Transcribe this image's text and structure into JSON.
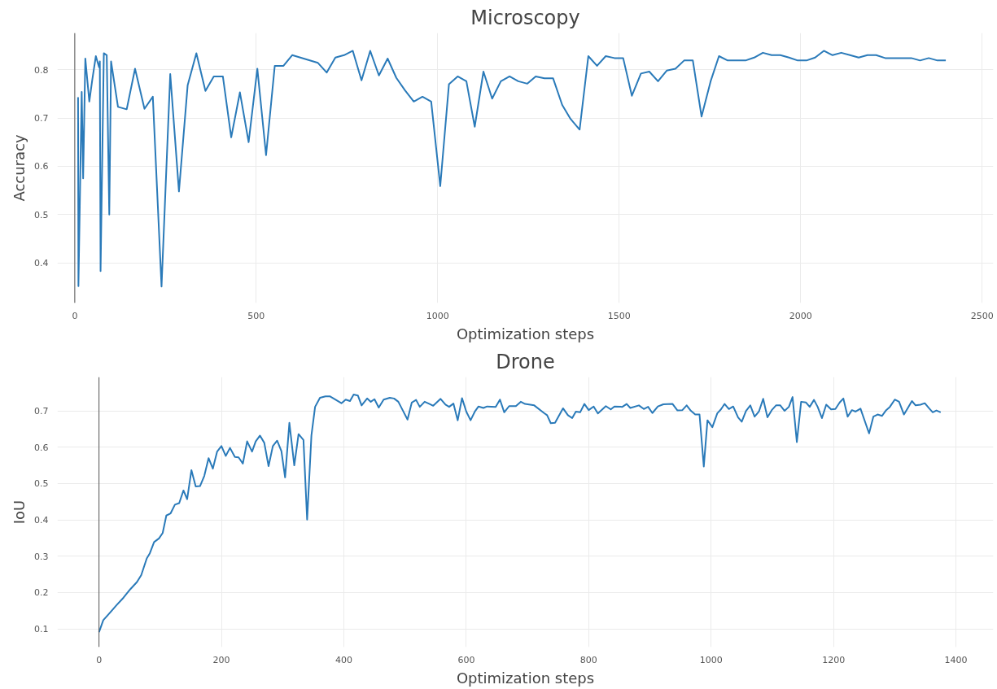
{
  "chart_data": [
    {
      "type": "line",
      "title": "Microscopy",
      "xlabel": "Optimization steps",
      "ylabel": "Accuracy",
      "xlim": [
        -48,
        2531
      ],
      "ylim": [
        0.317,
        0.876
      ],
      "xticks": [
        0,
        500,
        1000,
        1500,
        2000,
        2500
      ],
      "yticks": [
        0.4,
        0.5,
        0.6,
        0.7,
        0.8
      ],
      "grid": true,
      "ref_lines": [
        {
          "axis": "x",
          "value": 0,
          "color": "#555555"
        }
      ],
      "series": [
        {
          "color": "#2a7ab9",
          "x": [
            9,
            10,
            19,
            23,
            29,
            40,
            48,
            58,
            67,
            69,
            71,
            80,
            88,
            95,
            100,
            119,
            143,
            166,
            192,
            215,
            239,
            263,
            287,
            311,
            335,
            360,
            383,
            408,
            431,
            455,
            479,
            503,
            527,
            551,
            575,
            599,
            670,
            694,
            718,
            742,
            766,
            790,
            814,
            838,
            862,
            886,
            910,
            934,
            958,
            982,
            1007,
            1031,
            1055,
            1079,
            1102,
            1126,
            1150,
            1174,
            1198,
            1222,
            1247,
            1270,
            1294,
            1318,
            1343,
            1366,
            1391,
            1415,
            1439,
            1463,
            1487,
            1511,
            1535,
            1560,
            1583,
            1607,
            1631,
            1655,
            1679,
            1703,
            1727,
            1752,
            1775,
            1799,
            1848,
            1872,
            1896,
            1920,
            1944,
            1968,
            1992,
            2016,
            2040,
            2064,
            2088,
            2112,
            2136,
            2160,
            2184,
            2208,
            2233,
            2305,
            2329,
            2353,
            2377,
            2400
          ],
          "values": [
            0.743,
            0.352,
            0.754,
            0.575,
            0.823,
            0.734,
            0.778,
            0.828,
            0.805,
            0.817,
            0.383,
            0.834,
            0.83,
            0.5,
            0.817,
            0.723,
            0.718,
            0.802,
            0.719,
            0.744,
            0.351,
            0.791,
            0.548,
            0.768,
            0.834,
            0.756,
            0.786,
            0.786,
            0.66,
            0.753,
            0.65,
            0.802,
            0.623,
            0.808,
            0.808,
            0.83,
            0.814,
            0.794,
            0.825,
            0.83,
            0.839,
            0.778,
            0.839,
            0.788,
            0.823,
            0.783,
            0.757,
            0.734,
            0.744,
            0.734,
            0.559,
            0.77,
            0.786,
            0.776,
            0.682,
            0.796,
            0.74,
            0.776,
            0.786,
            0.776,
            0.771,
            0.786,
            0.782,
            0.782,
            0.727,
            0.698,
            0.676,
            0.828,
            0.808,
            0.828,
            0.824,
            0.824,
            0.746,
            0.792,
            0.796,
            0.776,
            0.798,
            0.802,
            0.819,
            0.819,
            0.703,
            0.776,
            0.828,
            0.819,
            0.819,
            0.825,
            0.835,
            0.83,
            0.83,
            0.825,
            0.819,
            0.819,
            0.825,
            0.839,
            0.83,
            0.835,
            0.83,
            0.825,
            0.83,
            0.83,
            0.824,
            0.824,
            0.819,
            0.824,
            0.819,
            0.819
          ]
        }
      ]
    },
    {
      "type": "line",
      "title": "Drone",
      "xlabel": "Optimization steps",
      "ylabel": "IoU",
      "xlim": [
        -68,
        1461
      ],
      "ylim": [
        0.05,
        0.793
      ],
      "xticks": [
        0,
        200,
        400,
        600,
        800,
        1000,
        1200,
        1400
      ],
      "yticks": [
        0.1,
        0.2,
        0.3,
        0.4,
        0.5,
        0.6,
        0.7
      ],
      "grid": true,
      "ref_lines": [
        {
          "axis": "x",
          "value": 0,
          "color": "#555555"
        }
      ],
      "series": [
        {
          "color": "#2a7ab9",
          "x": [
            0,
            7,
            18,
            29,
            40,
            51,
            62,
            69,
            78,
            83,
            90,
            98,
            104,
            110,
            117,
            124,
            131,
            138,
            144,
            151,
            158,
            165,
            172,
            179,
            186,
            193,
            200,
            207,
            214,
            222,
            228,
            235,
            242,
            250,
            256,
            263,
            270,
            277,
            284,
            291,
            298,
            304,
            311,
            319,
            326,
            334,
            340,
            347,
            353,
            361,
            370,
            377,
            386,
            396,
            403,
            410,
            416,
            423,
            429,
            438,
            444,
            450,
            457,
            465,
            475,
            482,
            489,
            496,
            504,
            511,
            518,
            524,
            532,
            540,
            546,
            558,
            566,
            572,
            579,
            586,
            593,
            600,
            607,
            614,
            620,
            628,
            634,
            648,
            655,
            662,
            670,
            681,
            689,
            696,
            711,
            727,
            732,
            738,
            745,
            758,
            766,
            773,
            779,
            786,
            793,
            800,
            808,
            815,
            828,
            836,
            842,
            855,
            862,
            868,
            882,
            890,
            897,
            904,
            913,
            922,
            937,
            945,
            953,
            960,
            967,
            974,
            981,
            988,
            994,
            1002,
            1010,
            1016,
            1022,
            1029,
            1036,
            1044,
            1050,
            1057,
            1064,
            1071,
            1078,
            1085,
            1092,
            1099,
            1106,
            1113,
            1120,
            1127,
            1133,
            1140,
            1147,
            1155,
            1161,
            1168,
            1174,
            1181,
            1188,
            1196,
            1203,
            1210,
            1216,
            1223,
            1230,
            1236,
            1244,
            1258,
            1265,
            1272,
            1279,
            1286,
            1292,
            1300,
            1307,
            1315,
            1320,
            1328,
            1334,
            1342,
            1349,
            1356,
            1362,
            1368,
            1375
          ],
          "values": [
            0.091,
            0.124,
            0.145,
            0.166,
            0.186,
            0.209,
            0.229,
            0.248,
            0.294,
            0.308,
            0.339,
            0.349,
            0.364,
            0.412,
            0.418,
            0.442,
            0.446,
            0.481,
            0.457,
            0.537,
            0.492,
            0.493,
            0.521,
            0.57,
            0.541,
            0.588,
            0.603,
            0.576,
            0.598,
            0.573,
            0.572,
            0.555,
            0.616,
            0.588,
            0.616,
            0.632,
            0.612,
            0.548,
            0.603,
            0.618,
            0.589,
            0.517,
            0.667,
            0.55,
            0.636,
            0.62,
            0.401,
            0.632,
            0.711,
            0.736,
            0.74,
            0.74,
            0.731,
            0.721,
            0.731,
            0.727,
            0.745,
            0.742,
            0.715,
            0.734,
            0.725,
            0.732,
            0.709,
            0.731,
            0.736,
            0.734,
            0.725,
            0.702,
            0.676,
            0.723,
            0.73,
            0.711,
            0.725,
            0.719,
            0.714,
            0.733,
            0.717,
            0.711,
            0.72,
            0.674,
            0.735,
            0.698,
            0.674,
            0.698,
            0.712,
            0.708,
            0.712,
            0.711,
            0.731,
            0.696,
            0.713,
            0.713,
            0.725,
            0.719,
            0.715,
            0.694,
            0.688,
            0.666,
            0.667,
            0.707,
            0.688,
            0.68,
            0.698,
            0.696,
            0.719,
            0.702,
            0.712,
            0.693,
            0.713,
            0.704,
            0.712,
            0.711,
            0.719,
            0.708,
            0.715,
            0.705,
            0.711,
            0.694,
            0.712,
            0.718,
            0.719,
            0.701,
            0.702,
            0.715,
            0.7,
            0.69,
            0.69,
            0.547,
            0.674,
            0.655,
            0.693,
            0.704,
            0.719,
            0.705,
            0.712,
            0.682,
            0.67,
            0.7,
            0.715,
            0.684,
            0.698,
            0.733,
            0.682,
            0.702,
            0.715,
            0.715,
            0.7,
            0.711,
            0.738,
            0.614,
            0.725,
            0.723,
            0.711,
            0.73,
            0.711,
            0.68,
            0.717,
            0.704,
            0.705,
            0.723,
            0.734,
            0.684,
            0.702,
            0.698,
            0.706,
            0.638,
            0.684,
            0.69,
            0.686,
            0.702,
            0.711,
            0.731,
            0.725,
            0.69,
            0.704,
            0.727,
            0.715,
            0.717,
            0.721,
            0.707,
            0.696,
            0.701,
            0.696
          ]
        }
      ]
    }
  ]
}
